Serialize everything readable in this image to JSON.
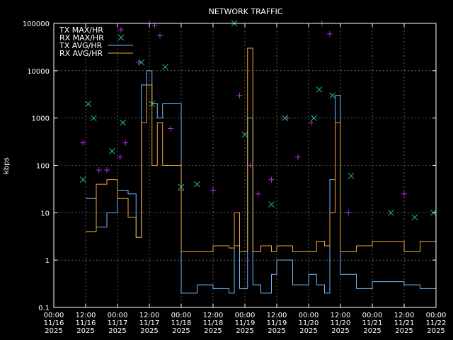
{
  "chart_data": {
    "type": "line",
    "title": "NETWORK TRAFFIC",
    "xlabel": "",
    "ylabel": "kbps",
    "y_scale": "log",
    "ylim": [
      0.1,
      100000
    ],
    "xlim": [
      "2025-11-16 00:00",
      "2025-11-22 00:00"
    ],
    "grid": true,
    "legend_position": "top-left",
    "y_ticks": [
      "0.1",
      "1",
      "10",
      "100",
      "1000",
      "10000",
      "100000"
    ],
    "x_ticks": [
      {
        "time": "00:00",
        "date": "11/16",
        "year": "2025",
        "at": "2025-11-16 00:00"
      },
      {
        "time": "12:00",
        "date": "11/16",
        "year": "2025",
        "at": "2025-11-16 12:00"
      },
      {
        "time": "00:00",
        "date": "11/17",
        "year": "2025",
        "at": "2025-11-17 00:00"
      },
      {
        "time": "12:00",
        "date": "11/17",
        "year": "2025",
        "at": "2025-11-17 12:00"
      },
      {
        "time": "00:00",
        "date": "11/18",
        "year": "2025",
        "at": "2025-11-18 00:00"
      },
      {
        "time": "12:00",
        "date": "11/18",
        "year": "2025",
        "at": "2025-11-18 12:00"
      },
      {
        "time": "00:00",
        "date": "11/19",
        "year": "2025",
        "at": "2025-11-19 00:00"
      },
      {
        "time": "12:00",
        "date": "11/19",
        "year": "2025",
        "at": "2025-11-19 12:00"
      },
      {
        "time": "00:00",
        "date": "11/20",
        "year": "2025",
        "at": "2025-11-20 00:00"
      },
      {
        "time": "12:00",
        "date": "11/20",
        "year": "2025",
        "at": "2025-11-20 12:00"
      },
      {
        "time": "00:00",
        "date": "11/21",
        "year": "2025",
        "at": "2025-11-21 00:00"
      },
      {
        "time": "12:00",
        "date": "11/21",
        "year": "2025",
        "at": "2025-11-21 12:00"
      },
      {
        "time": "00:00",
        "date": "11/22",
        "year": "2025",
        "at": "2025-11-22 00:00"
      }
    ],
    "series": [
      {
        "name": "TX MAX/HR",
        "kind": "points",
        "marker": "plus",
        "color": "#b030e0",
        "x": [
          "2025-11-16 11:00",
          "2025-11-16 17:00",
          "2025-11-16 20:00",
          "2025-11-17 01:00",
          "2025-11-17 03:00",
          "2025-11-17 08:00",
          "2025-11-17 12:00",
          "2025-11-17 14:00",
          "2025-11-17 16:00",
          "2025-11-17 20:00",
          "2025-11-18 00:00",
          "2025-11-18 12:00",
          "2025-11-18 22:00",
          "2025-11-19 02:00",
          "2025-11-19 05:00",
          "2025-11-19 10:00",
          "2025-11-19 16:00",
          "2025-11-19 20:00",
          "2025-11-20 01:00",
          "2025-11-20 05:00",
          "2025-11-20 08:00",
          "2025-11-20 15:00",
          "2025-11-21 12:00"
        ],
        "y": [
          300,
          80,
          80,
          150,
          300,
          15000,
          100000,
          90000,
          55000,
          600,
          30,
          30,
          3000,
          100,
          25,
          50,
          1000,
          150,
          800,
          100000,
          60000,
          10,
          25
        ]
      },
      {
        "name": "RX MAX/HR",
        "kind": "points",
        "marker": "cross",
        "color": "#20c080",
        "x": [
          "2025-11-16 11:00",
          "2025-11-16 13:00",
          "2025-11-16 15:00",
          "2025-11-16 22:00",
          "2025-11-17 02:00",
          "2025-11-17 09:00",
          "2025-11-17 13:00",
          "2025-11-17 18:00",
          "2025-11-18 00:00",
          "2025-11-18 06:00",
          "2025-11-18 20:00",
          "2025-11-19 00:00",
          "2025-11-19 10:00",
          "2025-11-19 15:00",
          "2025-11-20 02:00",
          "2025-11-20 04:00",
          "2025-11-20 09:00",
          "2025-11-20 16:00",
          "2025-11-21 07:00",
          "2025-11-21 16:00",
          "2025-11-21 23:00"
        ],
        "y": [
          50,
          2000,
          1000,
          200,
          800,
          15000,
          2000,
          12000,
          35,
          40,
          100000,
          450,
          15,
          1000,
          1000,
          4000,
          3000,
          60,
          10,
          8,
          10
        ]
      },
      {
        "name": "TX AVG/HR",
        "kind": "step",
        "color": "#70b8ff",
        "x": [
          "2025-11-16 00:00",
          "2025-11-16 12:00",
          "2025-11-16 16:00",
          "2025-11-16 20:00",
          "2025-11-17 00:00",
          "2025-11-17 04:00",
          "2025-11-17 07:00",
          "2025-11-17 09:00",
          "2025-11-17 11:00",
          "2025-11-17 13:00",
          "2025-11-17 15:00",
          "2025-11-17 17:00",
          "2025-11-18 00:00",
          "2025-11-18 06:00",
          "2025-11-18 12:00",
          "2025-11-18 18:00",
          "2025-11-18 20:00",
          "2025-11-18 22:00",
          "2025-11-19 01:00",
          "2025-11-19 03:00",
          "2025-11-19 06:00",
          "2025-11-19 10:00",
          "2025-11-19 12:00",
          "2025-11-19 18:00",
          "2025-11-20 00:00",
          "2025-11-20 03:00",
          "2025-11-20 06:00",
          "2025-11-20 08:00",
          "2025-11-20 10:00",
          "2025-11-20 12:00",
          "2025-11-20 18:00",
          "2025-11-21 00:00",
          "2025-11-21 12:00",
          "2025-11-21 18:00",
          "2025-11-22 00:00"
        ],
        "y": [
          null,
          20,
          5,
          10,
          30,
          25,
          3,
          5000,
          10000,
          2000,
          1000,
          2000,
          0.2,
          0.3,
          0.25,
          0.2,
          2,
          0.25,
          1000,
          0.3,
          0.2,
          0.5,
          1,
          0.3,
          0.5,
          0.3,
          0.2,
          50,
          3000,
          0.5,
          0.25,
          0.35,
          0.3,
          0.25,
          0.2
        ]
      },
      {
        "name": "RX AVG/HR",
        "kind": "step",
        "color": "#f0a830",
        "x": [
          "2025-11-16 00:00",
          "2025-11-16 12:00",
          "2025-11-16 16:00",
          "2025-11-16 20:00",
          "2025-11-17 00:00",
          "2025-11-17 04:00",
          "2025-11-17 07:00",
          "2025-11-17 09:00",
          "2025-11-17 11:00",
          "2025-11-17 13:00",
          "2025-11-17 15:00",
          "2025-11-17 17:00",
          "2025-11-18 00:00",
          "2025-11-18 06:00",
          "2025-11-18 12:00",
          "2025-11-18 18:00",
          "2025-11-18 20:00",
          "2025-11-18 22:00",
          "2025-11-19 01:00",
          "2025-11-19 03:00",
          "2025-11-19 06:00",
          "2025-11-19 10:00",
          "2025-11-19 12:00",
          "2025-11-19 18:00",
          "2025-11-20 00:00",
          "2025-11-20 03:00",
          "2025-11-20 06:00",
          "2025-11-20 08:00",
          "2025-11-20 10:00",
          "2025-11-20 12:00",
          "2025-11-20 18:00",
          "2025-11-21 00:00",
          "2025-11-21 12:00",
          "2025-11-21 18:00",
          "2025-11-22 00:00"
        ],
        "y": [
          null,
          4,
          40,
          50,
          20,
          8,
          3,
          800,
          5000,
          100,
          800,
          100,
          1.5,
          1.5,
          2,
          1.8,
          10,
          1.5,
          30000,
          1.5,
          2,
          1.5,
          2,
          1.5,
          1.5,
          2.5,
          2,
          10,
          800,
          1.5,
          2,
          2.5,
          1.5,
          2.5,
          4
        ]
      }
    ]
  }
}
